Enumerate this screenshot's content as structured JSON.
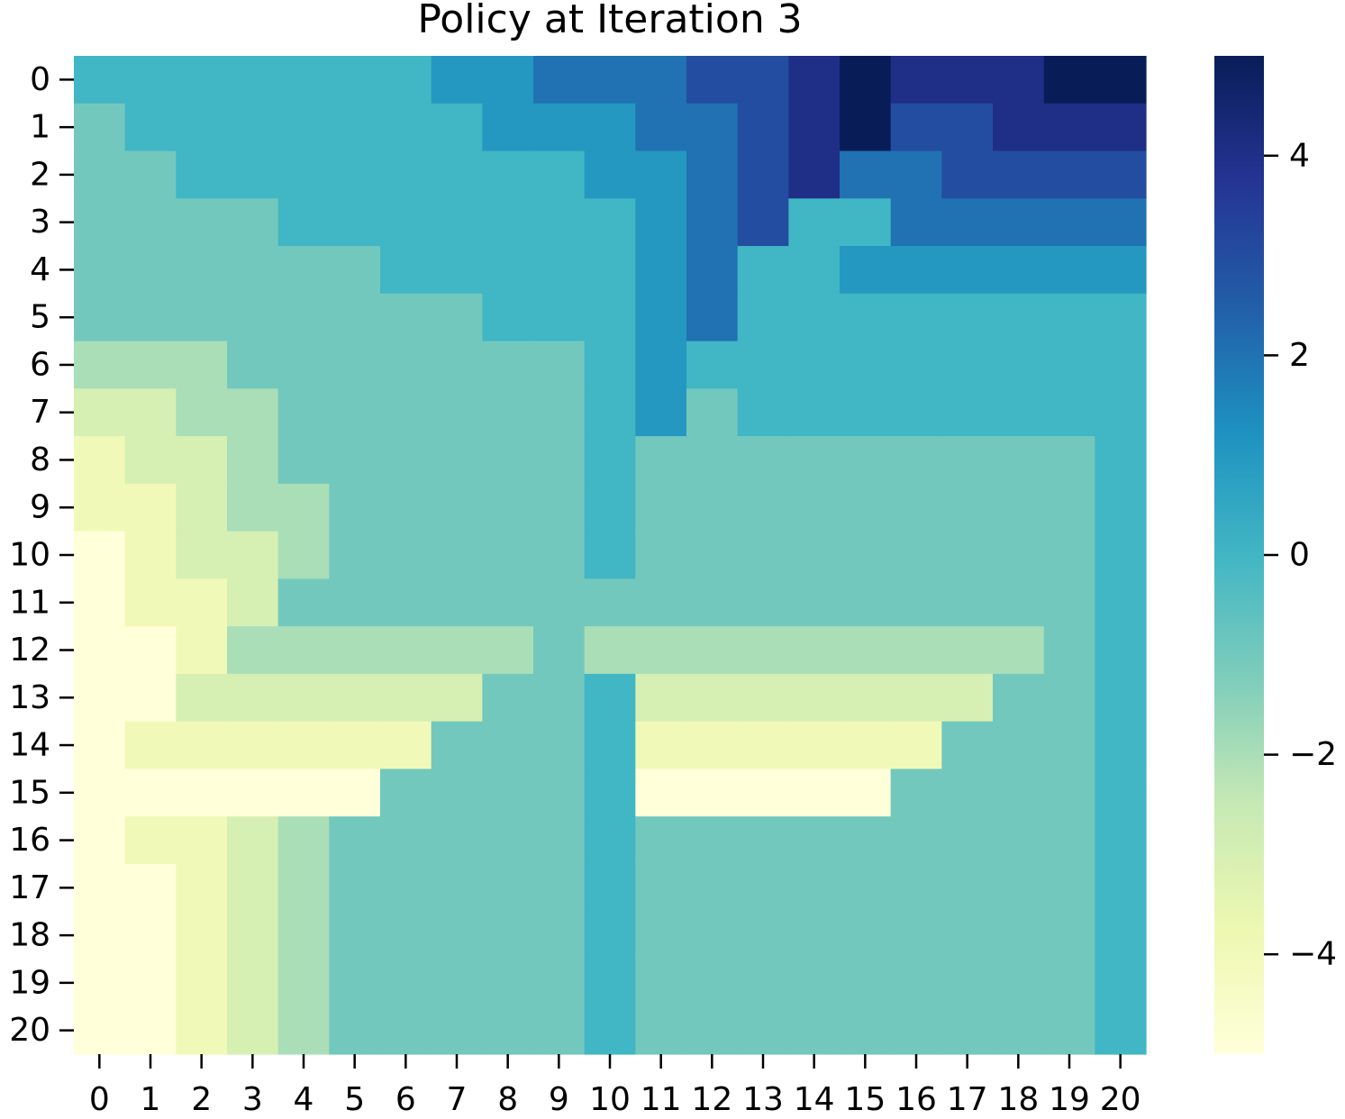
{
  "chart_data": {
    "type": "heatmap",
    "title": "Policy at Iteration 3",
    "xlabel": "",
    "ylabel": "",
    "x_categories": [
      "0",
      "1",
      "2",
      "3",
      "4",
      "5",
      "6",
      "7",
      "8",
      "9",
      "10",
      "11",
      "12",
      "13",
      "14",
      "15",
      "16",
      "17",
      "18",
      "19",
      "20"
    ],
    "y_categories": [
      "0",
      "1",
      "2",
      "3",
      "4",
      "5",
      "6",
      "7",
      "8",
      "9",
      "10",
      "11",
      "12",
      "13",
      "14",
      "15",
      "16",
      "17",
      "18",
      "19",
      "20"
    ],
    "value_range": [
      -5,
      5
    ],
    "colormap": "YlGnBu",
    "colormap_stops": [
      "#ffffd9",
      "#edf8b1",
      "#c7e9b4",
      "#7fcdbb",
      "#41b6c4",
      "#1d91c0",
      "#225ea8",
      "#253494",
      "#081d58"
    ],
    "colorbar_ticks": [
      {
        "value": 4,
        "label": "4"
      },
      {
        "value": 2,
        "label": "2"
      },
      {
        "value": 0,
        "label": "0"
      },
      {
        "value": -2,
        "label": "−2"
      },
      {
        "value": -4,
        "label": "−4"
      }
    ],
    "grid": false,
    "values": [
      [
        0,
        0,
        0,
        0,
        0,
        0,
        0,
        1,
        1,
        2,
        2,
        2,
        3,
        3,
        4,
        5,
        4,
        4,
        4,
        5,
        5
      ],
      [
        -1,
        0,
        0,
        0,
        0,
        0,
        0,
        0,
        1,
        1,
        1,
        2,
        2,
        3,
        4,
        5,
        3,
        3,
        4,
        4,
        4
      ],
      [
        -1,
        -1,
        0,
        0,
        0,
        0,
        0,
        0,
        0,
        0,
        1,
        1,
        2,
        3,
        4,
        2,
        2,
        3,
        3,
        3,
        3
      ],
      [
        -1,
        -1,
        -1,
        -1,
        0,
        0,
        0,
        0,
        0,
        0,
        0,
        1,
        2,
        3,
        0,
        0,
        2,
        2,
        2,
        2,
        2
      ],
      [
        -1,
        -1,
        -1,
        -1,
        -1,
        -1,
        0,
        0,
        0,
        0,
        0,
        1,
        2,
        0,
        0,
        1,
        1,
        1,
        1,
        1,
        1
      ],
      [
        -1,
        -1,
        -1,
        -1,
        -1,
        -1,
        -1,
        -1,
        0,
        0,
        0,
        1,
        2,
        0,
        0,
        0,
        0,
        0,
        0,
        0,
        0
      ],
      [
        -2,
        -2,
        -2,
        -1,
        -1,
        -1,
        -1,
        -1,
        -1,
        -1,
        0,
        1,
        0,
        0,
        0,
        0,
        0,
        0,
        0,
        0,
        0
      ],
      [
        -3,
        -3,
        -2,
        -2,
        -1,
        -1,
        -1,
        -1,
        -1,
        -1,
        0,
        1,
        -1,
        0,
        0,
        0,
        0,
        0,
        0,
        0,
        0
      ],
      [
        -4,
        -3,
        -3,
        -2,
        -1,
        -1,
        -1,
        -1,
        -1,
        -1,
        0,
        -1,
        -1,
        -1,
        -1,
        -1,
        -1,
        -1,
        -1,
        -1,
        0
      ],
      [
        -4,
        -4,
        -3,
        -2,
        -2,
        -1,
        -1,
        -1,
        -1,
        -1,
        0,
        -1,
        -1,
        -1,
        -1,
        -1,
        -1,
        -1,
        -1,
        -1,
        0
      ],
      [
        -5,
        -4,
        -3,
        -3,
        -2,
        -1,
        -1,
        -1,
        -1,
        -1,
        0,
        -1,
        -1,
        -1,
        -1,
        -1,
        -1,
        -1,
        -1,
        -1,
        0
      ],
      [
        -5,
        -4,
        -4,
        -3,
        -1,
        -1,
        -1,
        -1,
        -1,
        -1,
        -1,
        -1,
        -1,
        -1,
        -1,
        -1,
        -1,
        -1,
        -1,
        -1,
        0
      ],
      [
        -5,
        -5,
        -4,
        -2,
        -2,
        -2,
        -2,
        -2,
        -2,
        -1,
        -2,
        -2,
        -2,
        -2,
        -2,
        -2,
        -2,
        -2,
        -2,
        -1,
        0
      ],
      [
        -5,
        -5,
        -3,
        -3,
        -3,
        -3,
        -3,
        -3,
        -1,
        -1,
        0,
        -3,
        -3,
        -3,
        -3,
        -3,
        -3,
        -3,
        -1,
        -1,
        0
      ],
      [
        -5,
        -4,
        -4,
        -4,
        -4,
        -4,
        -4,
        -1,
        -1,
        -1,
        0,
        -4,
        -4,
        -4,
        -4,
        -4,
        -4,
        -1,
        -1,
        -1,
        0
      ],
      [
        -5,
        -5,
        -5,
        -5,
        -5,
        -5,
        -1,
        -1,
        -1,
        -1,
        0,
        -5,
        -5,
        -5,
        -5,
        -5,
        -1,
        -1,
        -1,
        -1,
        0
      ],
      [
        -5,
        -4,
        -4,
        -3,
        -2,
        -1,
        -1,
        -1,
        -1,
        -1,
        0,
        -1,
        -1,
        -1,
        -1,
        -1,
        -1,
        -1,
        -1,
        -1,
        0
      ],
      [
        -5,
        -5,
        -4,
        -3,
        -2,
        -1,
        -1,
        -1,
        -1,
        -1,
        0,
        -1,
        -1,
        -1,
        -1,
        -1,
        -1,
        -1,
        -1,
        -1,
        0
      ],
      [
        -5,
        -5,
        -4,
        -3,
        -2,
        -1,
        -1,
        -1,
        -1,
        -1,
        0,
        -1,
        -1,
        -1,
        -1,
        -1,
        -1,
        -1,
        -1,
        -1,
        0
      ],
      [
        -5,
        -5,
        -4,
        -3,
        -2,
        -1,
        -1,
        -1,
        -1,
        -1,
        0,
        -1,
        -1,
        -1,
        -1,
        -1,
        -1,
        -1,
        -1,
        -1,
        0
      ],
      [
        -5,
        -5,
        -4,
        -3,
        -2,
        -1,
        -1,
        -1,
        -1,
        -1,
        0,
        -1,
        -1,
        -1,
        -1,
        -1,
        -1,
        -1,
        -1,
        -1,
        0
      ]
    ]
  }
}
